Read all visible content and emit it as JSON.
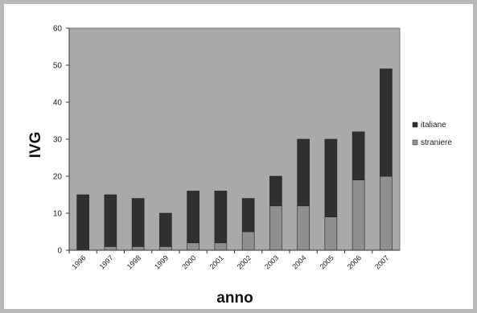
{
  "chart_data": {
    "type": "bar",
    "stacked": true,
    "categories": [
      "1996",
      "1997",
      "1998",
      "1999",
      "2000",
      "2001",
      "2002",
      "2003",
      "2004",
      "2005",
      "2006",
      "2007"
    ],
    "series": [
      {
        "name": "straniere",
        "values": [
          0,
          1,
          1,
          1,
          2,
          2,
          5,
          12,
          12,
          9,
          19,
          20
        ],
        "color": "#8f8f8f"
      },
      {
        "name": "italiane",
        "values": [
          15,
          14,
          13,
          9,
          14,
          14,
          9,
          8,
          18,
          21,
          13,
          29
        ],
        "color": "#303030"
      }
    ],
    "title": "",
    "xlabel": "anno",
    "ylabel": "IVG",
    "ylim": [
      0,
      60
    ],
    "yticks": [
      0,
      10,
      20,
      30,
      40,
      50,
      60
    ],
    "grid": false,
    "legend_position": "right",
    "plot_background": "#a9a9a9"
  }
}
